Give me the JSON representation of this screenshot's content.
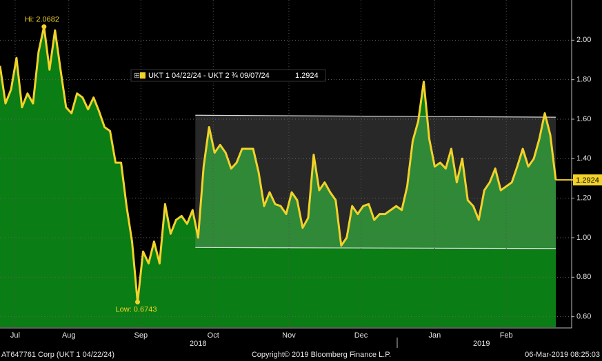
{
  "chart_data": {
    "type": "area",
    "series": [
      {
        "name": "UKT 1 04/22/24 - UKT 2 ¾ 09/07/24",
        "color": "#f2d22a",
        "values": [
          1.87,
          1.68,
          1.75,
          1.91,
          1.66,
          1.73,
          1.68,
          1.94,
          2.0682,
          1.85,
          2.05,
          1.85,
          1.66,
          1.63,
          1.73,
          1.71,
          1.65,
          1.71,
          1.64,
          1.56,
          1.54,
          1.38,
          1.38,
          1.16,
          0.98,
          0.6743,
          0.93,
          0.87,
          0.98,
          0.87,
          1.17,
          1.02,
          1.09,
          1.11,
          1.07,
          1.14,
          1.0,
          1.36,
          1.56,
          1.43,
          1.47,
          1.43,
          1.35,
          1.38,
          1.45,
          1.45,
          1.45,
          1.33,
          1.16,
          1.23,
          1.17,
          1.16,
          1.12,
          1.23,
          1.19,
          1.05,
          1.1,
          1.42,
          1.24,
          1.28,
          1.23,
          1.19,
          0.96,
          1.0,
          1.16,
          1.12,
          1.16,
          1.17,
          1.09,
          1.12,
          1.12,
          1.14,
          1.16,
          1.14,
          1.26,
          1.49,
          1.59,
          1.79,
          1.5,
          1.36,
          1.38,
          1.35,
          1.45,
          1.28,
          1.4,
          1.19,
          1.16,
          1.09,
          1.24,
          1.28,
          1.35,
          1.24,
          1.26,
          1.28,
          1.36,
          1.45,
          1.36,
          1.4,
          1.5,
          1.63,
          1.52,
          1.2924
        ]
      }
    ],
    "fill_color": "#0a7d14",
    "last_value_label": "1.2924",
    "hi_label": "Hi: 2.0682",
    "low_label": "Low: 0.6743",
    "channel": {
      "x": [
        35.5,
        101
      ],
      "top": [
        1.62,
        1.61
      ],
      "bottom": [
        0.95,
        0.945
      ]
    },
    "ylim": [
      0.55,
      2.2
    ],
    "yticks": [
      {
        "value": 0.6,
        "label": "0.60"
      },
      {
        "value": 0.8,
        "label": "0.80"
      },
      {
        "value": 1.0,
        "label": "1.00"
      },
      {
        "value": 1.2,
        "label": "1.20"
      },
      {
        "value": 1.4,
        "label": "1.40"
      },
      {
        "value": 1.6,
        "label": "1.60"
      },
      {
        "value": 1.8,
        "label": "1.80"
      },
      {
        "value": 2.0,
        "label": "2.00"
      }
    ],
    "xlim": [
      0,
      101
    ],
    "xticks": [
      {
        "value": 2.75,
        "label": "Jul"
      },
      {
        "value": 12.5,
        "label": "Aug"
      },
      {
        "value": 25.6,
        "label": "Sep"
      },
      {
        "value": 38.75,
        "label": "Oct"
      },
      {
        "value": 52.5,
        "label": "Nov"
      },
      {
        "value": 65.6,
        "label": "Dec"
      },
      {
        "value": 79,
        "label": "Jan"
      },
      {
        "value": 92,
        "label": "Feb"
      }
    ],
    "years": [
      {
        "value": 36,
        "label": "2018"
      },
      {
        "value": 87.5,
        "label": "2019"
      }
    ],
    "grid": true,
    "footer": {
      "left": "AT647761 Corp (UKT 1 04/22/24)",
      "center": "Copyright© 2019 Bloomberg Finance L.P.",
      "right": "06-Mar-2019 08:25:03"
    }
  }
}
